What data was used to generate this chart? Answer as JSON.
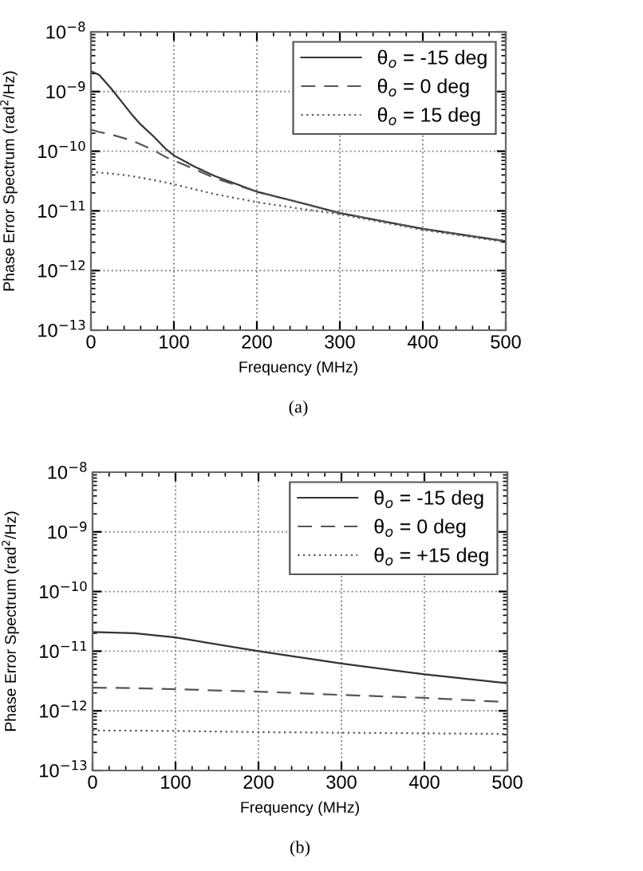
{
  "chart_data": [
    {
      "type": "line",
      "xlabel": "Frequency (MHz)",
      "ylabel": "Phase Error Spectrum (rad$^{2}$/Hz)",
      "annotations": [
        "(a)"
      ],
      "log": "y",
      "grid": true,
      "legend": "top right",
      "xlim": [
        0,
        500
      ],
      "xticks": [
        0,
        100,
        200,
        300,
        400,
        500
      ],
      "ylim": [
        1e-13,
        1e-08
      ],
      "yticks": [
        {
          "value": 1e-13,
          "label": "10$^{−13}$"
        },
        {
          "value": 1e-12,
          "label": "10$^{−12}$"
        },
        {
          "value": 1e-11,
          "label": "10$^{−11}$"
        },
        {
          "value": 1e-10,
          "label": "10$^{−10}$"
        },
        {
          "value": 1e-09,
          "label": "10$^{−9}$"
        },
        {
          "value": 1e-08,
          "label": "10$^{−8}$"
        }
      ],
      "x": [
        0,
        10,
        25,
        40,
        50,
        60,
        75,
        90,
        100,
        125,
        150,
        200,
        250,
        300,
        400,
        500
      ],
      "series": [
        {
          "name": "θ$_{o}$ = -15 deg",
          "color": "#333333",
          "line_style": "solid",
          "values": [
            2.2e-09,
            1.9e-09,
            1.1e-09,
            6e-10,
            4e-10,
            2.8e-10,
            1.8e-10,
            1.1e-10,
            8.5e-11,
            5.5e-11,
            3.8e-11,
            2.1e-11,
            1.4e-11,
            9.2e-12,
            5e-12,
            3.1e-12
          ]
        },
        {
          "name": "θ$_{o}$ = 0 deg",
          "color": "#555555",
          "line_style": "dashed",
          "values": [
            2.3e-10,
            2.1e-10,
            1.9e-10,
            1.65e-10,
            1.5e-10,
            1.3e-10,
            1.05e-10,
            8e-11,
            7e-11,
            5e-11,
            3.5e-11,
            2.1e-11,
            1.4e-11,
            9.2e-12,
            5e-12,
            3.1e-12
          ]
        },
        {
          "name": "θ$_{o}$ = 15 deg",
          "color": "#555555",
          "line_style": "dotted",
          "values": [
            4.5e-11,
            4.4e-11,
            4.2e-11,
            4e-11,
            3.8e-11,
            3.6e-11,
            3.3e-11,
            3e-11,
            2.8e-11,
            2.3e-11,
            1.9e-11,
            1.4e-11,
            1.1e-11,
            8.8e-12,
            4.8e-12,
            3e-12
          ]
        }
      ]
    },
    {
      "type": "line",
      "xlabel": "Frequency (MHz)",
      "ylabel": "Phase Error Spectrum (rad$^{2}$/Hz)",
      "annotations": [
        "(b)"
      ],
      "log": "y",
      "grid": true,
      "legend": "top right",
      "xlim": [
        0,
        500
      ],
      "xticks": [
        0,
        100,
        200,
        300,
        400,
        500
      ],
      "ylim": [
        1e-13,
        1e-08
      ],
      "yticks": [
        {
          "value": 1e-13,
          "label": "10$^{−13}$"
        },
        {
          "value": 1e-12,
          "label": "10$^{−12}$"
        },
        {
          "value": 1e-11,
          "label": "10$^{−11}$"
        },
        {
          "value": 1e-10,
          "label": "10$^{−10}$"
        },
        {
          "value": 1e-09,
          "label": "10$^{−9}$"
        },
        {
          "value": 1e-08,
          "label": "10$^{−8}$"
        }
      ],
      "x": [
        0,
        50,
        100,
        200,
        300,
        400,
        500
      ],
      "series": [
        {
          "name": "θ$_{o}$ = -15 deg",
          "color": "#333333",
          "line_style": "solid",
          "values": [
            2.1e-11,
            2e-11,
            1.7e-11,
            1e-11,
            6.2e-12,
            4.1e-12,
            2.9e-12
          ]
        },
        {
          "name": "θ$_{o}$ = 0 deg",
          "color": "#555555",
          "line_style": "dashed",
          "values": [
            2.45e-12,
            2.4e-12,
            2.3e-12,
            2.1e-12,
            1.85e-12,
            1.65e-12,
            1.4e-12
          ]
        },
        {
          "name": "θ$_{o}$ = +15 deg",
          "color": "#555555",
          "line_style": "dotted",
          "values": [
            4.7e-13,
            4.65e-13,
            4.6e-13,
            4.4e-13,
            4.3e-13,
            4.2e-13,
            4.1e-13
          ]
        }
      ]
    }
  ]
}
